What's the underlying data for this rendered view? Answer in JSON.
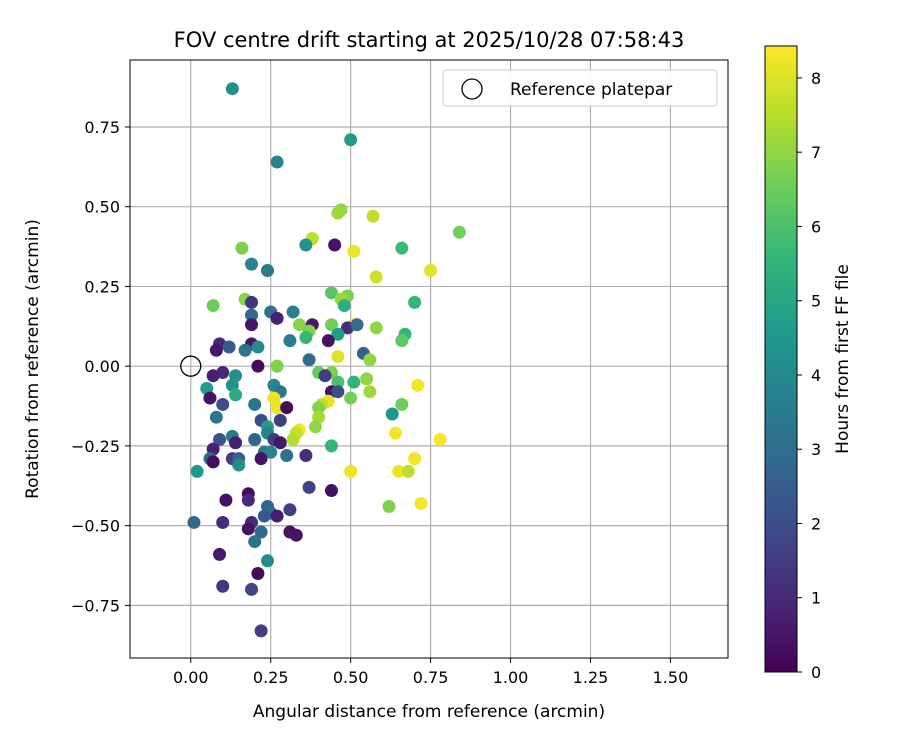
{
  "chart_data": {
    "type": "scatter",
    "title": "FOV centre drift starting at 2025/10/28 07:58:43",
    "xlabel": "Angular distance from reference (arcmin)",
    "ylabel": "Rotation from reference (arcmin)",
    "xlim": [
      -0.19,
      1.68
    ],
    "ylim": [
      -0.915,
      0.96
    ],
    "xticks": [
      0.0,
      0.25,
      0.5,
      0.75,
      1.0,
      1.25,
      1.5
    ],
    "xtick_labels": [
      "0.00",
      "0.25",
      "0.50",
      "0.75",
      "1.00",
      "1.25",
      "1.50"
    ],
    "yticks": [
      -0.75,
      -0.5,
      -0.25,
      0.0,
      0.25,
      0.5,
      0.75
    ],
    "ytick_labels": [
      "−0.75",
      "−0.50",
      "−0.25",
      "0.00",
      "0.25",
      "0.50",
      "0.75"
    ],
    "grid": true,
    "legend": {
      "position": "top-right",
      "label": "Reference platepar"
    },
    "reference_point": {
      "x": 0.0,
      "y": 0.0
    },
    "colorbar": {
      "label": "Hours from first FF file",
      "min": 0,
      "max": 8.43,
      "ticks": [
        0,
        1,
        2,
        3,
        4,
        5,
        6,
        7,
        8
      ],
      "tick_labels": [
        "0",
        "1",
        "2",
        "3",
        "4",
        "5",
        "6",
        "7",
        "8"
      ],
      "colormap": [
        "#440154",
        "#482878",
        "#3e4989",
        "#31688e",
        "#26828e",
        "#1f9e89",
        "#35b779",
        "#6ece58",
        "#b5de2b",
        "#fde725"
      ]
    },
    "points": [
      [
        0.13,
        0.87,
        4.2
      ],
      [
        0.5,
        0.71,
        4.6
      ],
      [
        0.27,
        0.64,
        3.8
      ],
      [
        0.47,
        0.49,
        7.0
      ],
      [
        0.46,
        0.48,
        7.2
      ],
      [
        0.57,
        0.47,
        7.6
      ],
      [
        0.84,
        0.42,
        6.6
      ],
      [
        0.38,
        0.4,
        7.6
      ],
      [
        0.36,
        0.38,
        4.3
      ],
      [
        0.45,
        0.38,
        0.4
      ],
      [
        0.16,
        0.37,
        6.7
      ],
      [
        0.66,
        0.37,
        5.7
      ],
      [
        0.51,
        0.36,
        8.2
      ],
      [
        0.19,
        0.32,
        3.7
      ],
      [
        0.75,
        0.3,
        8.1
      ],
      [
        0.24,
        0.3,
        3.5
      ],
      [
        0.58,
        0.28,
        7.8
      ],
      [
        0.44,
        0.23,
        6.2
      ],
      [
        0.49,
        0.22,
        6.8
      ],
      [
        0.17,
        0.21,
        6.9
      ],
      [
        0.47,
        0.21,
        7.2
      ],
      [
        0.19,
        0.2,
        1.3
      ],
      [
        0.7,
        0.2,
        5.6
      ],
      [
        0.07,
        0.19,
        6.5
      ],
      [
        0.48,
        0.19,
        5.3
      ],
      [
        0.32,
        0.17,
        3.7
      ],
      [
        0.25,
        0.17,
        3.1
      ],
      [
        0.19,
        0.16,
        2.8
      ],
      [
        0.27,
        0.15,
        0.8
      ],
      [
        0.51,
        0.13,
        8.0
      ],
      [
        0.34,
        0.13,
        6.9
      ],
      [
        0.38,
        0.13,
        0.6
      ],
      [
        0.44,
        0.13,
        6.6
      ],
      [
        0.49,
        0.12,
        1.1
      ],
      [
        0.52,
        0.13,
        3.0
      ],
      [
        0.58,
        0.12,
        7.0
      ],
      [
        0.19,
        0.13,
        0.5
      ],
      [
        0.37,
        0.11,
        6.8
      ],
      [
        0.46,
        0.1,
        4.7
      ],
      [
        0.36,
        0.09,
        5.6
      ],
      [
        0.67,
        0.1,
        5.6
      ],
      [
        0.43,
        0.08,
        0.4
      ],
      [
        0.66,
        0.08,
        6.3
      ],
      [
        0.31,
        0.08,
        3.6
      ],
      [
        0.09,
        0.07,
        1.0
      ],
      [
        0.19,
        0.07,
        0.5
      ],
      [
        0.21,
        0.06,
        4.0
      ],
      [
        0.12,
        0.06,
        2.4
      ],
      [
        0.17,
        0.05,
        3.2
      ],
      [
        0.08,
        0.05,
        0.5
      ],
      [
        0.54,
        0.04,
        2.6
      ],
      [
        0.46,
        0.03,
        8.0
      ],
      [
        0.56,
        0.02,
        7.0
      ],
      [
        0.37,
        0.02,
        3.0
      ],
      [
        0.21,
        0.0,
        0.3
      ],
      [
        0.27,
        0.0,
        6.8
      ],
      [
        0.1,
        -0.02,
        1.0
      ],
      [
        0.07,
        -0.03,
        0.8
      ],
      [
        0.4,
        -0.02,
        6.4
      ],
      [
        0.44,
        -0.02,
        6.7
      ],
      [
        0.42,
        -0.03,
        1.5
      ],
      [
        0.14,
        -0.03,
        4.2
      ],
      [
        0.46,
        -0.05,
        6.0
      ],
      [
        0.51,
        -0.05,
        5.5
      ],
      [
        0.55,
        -0.04,
        7.0
      ],
      [
        0.26,
        -0.06,
        3.9
      ],
      [
        0.13,
        -0.06,
        4.3
      ],
      [
        0.05,
        -0.07,
        4.6
      ],
      [
        0.56,
        -0.08,
        7.2
      ],
      [
        0.28,
        -0.08,
        3.4
      ],
      [
        0.44,
        -0.08,
        0.4
      ],
      [
        0.46,
        -0.08,
        2.0
      ],
      [
        0.71,
        -0.06,
        8.3
      ],
      [
        0.14,
        -0.09,
        5.2
      ],
      [
        0.26,
        -0.1,
        8.2
      ],
      [
        0.06,
        -0.1,
        0.4
      ],
      [
        0.43,
        -0.11,
        8.2
      ],
      [
        0.5,
        -0.1,
        6.6
      ],
      [
        0.1,
        -0.12,
        2.0
      ],
      [
        0.2,
        -0.12,
        3.4
      ],
      [
        0.41,
        -0.12,
        7.7
      ],
      [
        0.66,
        -0.12,
        6.5
      ],
      [
        0.27,
        -0.13,
        8.2
      ],
      [
        0.3,
        -0.13,
        0.3
      ],
      [
        0.4,
        -0.13,
        6.8
      ],
      [
        0.63,
        -0.15,
        4.4
      ],
      [
        0.4,
        -0.16,
        7.3
      ],
      [
        0.08,
        -0.16,
        3.4
      ],
      [
        0.22,
        -0.17,
        2.0
      ],
      [
        0.28,
        -0.17,
        1.6
      ],
      [
        0.24,
        -0.19,
        4.6
      ],
      [
        0.39,
        -0.19,
        7.0
      ],
      [
        0.34,
        -0.2,
        8.3
      ],
      [
        0.33,
        -0.21,
        7.7
      ],
      [
        0.64,
        -0.21,
        8.3
      ],
      [
        0.24,
        -0.21,
        3.8
      ],
      [
        0.13,
        -0.22,
        3.5
      ],
      [
        0.26,
        -0.23,
        1.5
      ],
      [
        0.09,
        -0.23,
        2.2
      ],
      [
        0.32,
        -0.23,
        7.5
      ],
      [
        0.2,
        -0.23,
        2.7
      ],
      [
        0.78,
        -0.23,
        8.3
      ],
      [
        0.28,
        -0.24,
        0.5
      ],
      [
        0.14,
        -0.24,
        0.8
      ],
      [
        0.44,
        -0.25,
        5.5
      ],
      [
        0.07,
        -0.26,
        0.8
      ],
      [
        0.23,
        -0.27,
        3.3
      ],
      [
        0.25,
        -0.27,
        3.8
      ],
      [
        0.3,
        -0.28,
        3.1
      ],
      [
        0.36,
        -0.28,
        1.1
      ],
      [
        0.22,
        -0.29,
        0.4
      ],
      [
        0.13,
        -0.29,
        1.5
      ],
      [
        0.15,
        -0.29,
        2.5
      ],
      [
        0.7,
        -0.29,
        8.3
      ],
      [
        0.06,
        -0.29,
        2.8
      ],
      [
        0.15,
        -0.31,
        4.1
      ],
      [
        0.07,
        -0.3,
        0.3
      ],
      [
        0.5,
        -0.33,
        8.2
      ],
      [
        0.65,
        -0.33,
        8.2
      ],
      [
        0.68,
        -0.33,
        7.6
      ],
      [
        0.02,
        -0.33,
        4.5
      ],
      [
        0.37,
        -0.38,
        1.7
      ],
      [
        0.44,
        -0.39,
        0.3
      ],
      [
        0.18,
        -0.4,
        0.3
      ],
      [
        0.11,
        -0.42,
        0.4
      ],
      [
        0.18,
        -0.42,
        1.0
      ],
      [
        0.72,
        -0.43,
        8.3
      ],
      [
        0.62,
        -0.44,
        6.8
      ],
      [
        0.24,
        -0.44,
        2.6
      ],
      [
        0.31,
        -0.45,
        1.6
      ],
      [
        0.25,
        -0.46,
        3.0
      ],
      [
        0.23,
        -0.47,
        2.4
      ],
      [
        0.27,
        -0.47,
        0.7
      ],
      [
        0.19,
        -0.49,
        1.0
      ],
      [
        0.1,
        -0.49,
        1.0
      ],
      [
        0.01,
        -0.49,
        2.8
      ],
      [
        0.18,
        -0.51,
        0.4
      ],
      [
        0.22,
        -0.52,
        2.9
      ],
      [
        0.31,
        -0.52,
        0.4
      ],
      [
        0.33,
        -0.53,
        0.4
      ],
      [
        0.2,
        -0.55,
        3.1
      ],
      [
        0.09,
        -0.59,
        0.6
      ],
      [
        0.24,
        -0.61,
        4.1
      ],
      [
        0.21,
        -0.65,
        0.3
      ],
      [
        0.1,
        -0.69,
        1.3
      ],
      [
        0.19,
        -0.7,
        1.8
      ],
      [
        0.22,
        -0.83,
        1.6
      ]
    ]
  }
}
